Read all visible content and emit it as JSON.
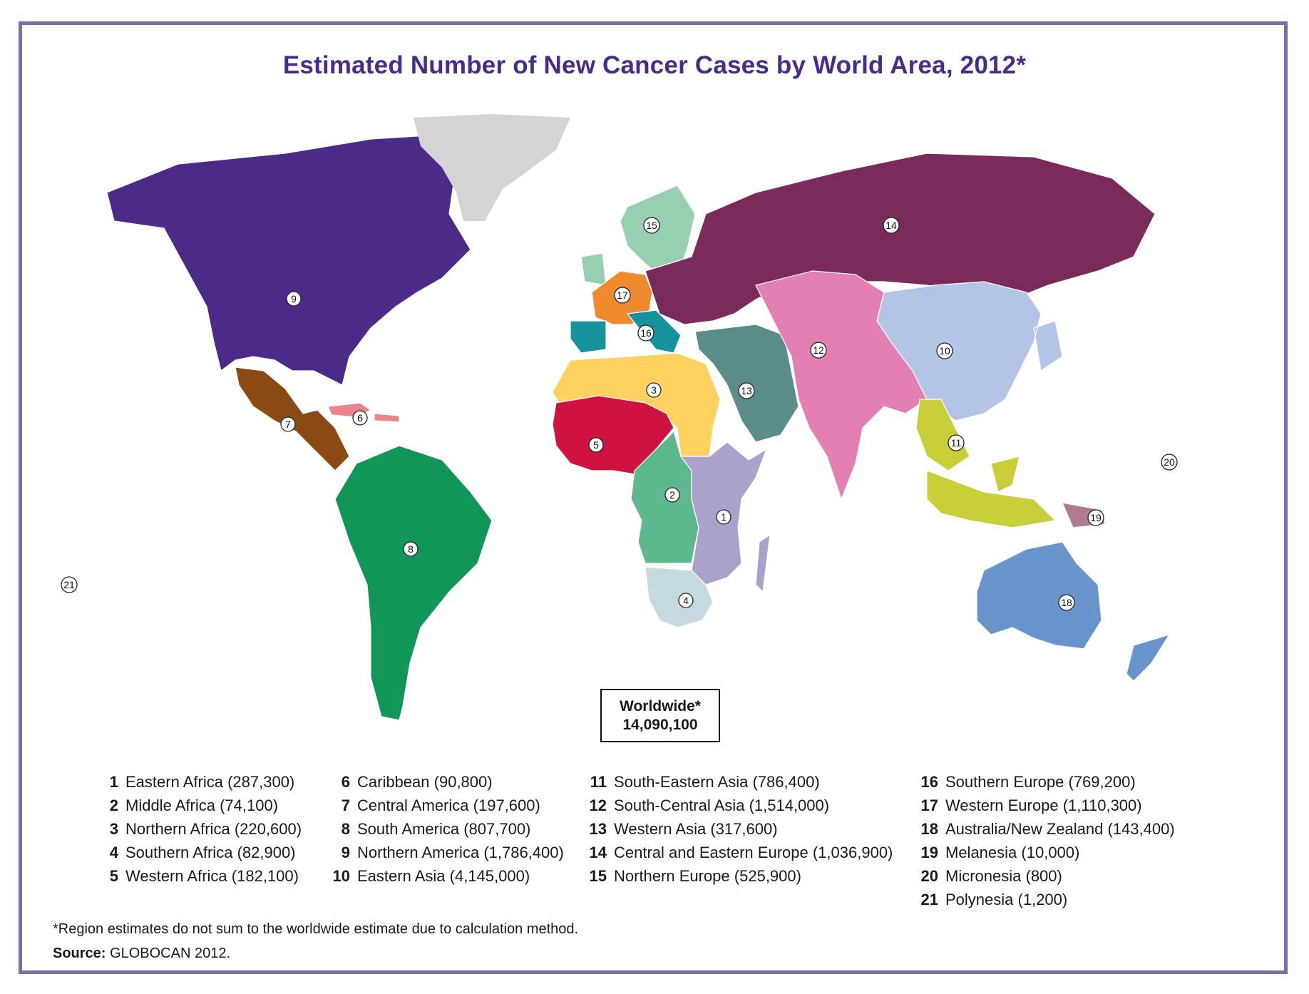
{
  "title": "Estimated Number of New Cancer Cases by World Area, 2012*",
  "worldwide": {
    "label": "Worldwide*",
    "value": "14,090,100"
  },
  "regions": [
    {
      "num": "1",
      "name": "Eastern Africa",
      "cases": "(287,300)",
      "color": "#aaa2cb"
    },
    {
      "num": "2",
      "name": "Middle Africa",
      "cases": "(74,100)",
      "color": "#5db98d"
    },
    {
      "num": "3",
      "name": "Northern Africa",
      "cases": "(220,600)",
      "color": "#ffd15e"
    },
    {
      "num": "4",
      "name": "Southern Africa",
      "cases": "(82,900)",
      "color": "#c4dade"
    },
    {
      "num": "5",
      "name": "Western Africa",
      "cases": "(182,100)",
      "color": "#cf1242"
    },
    {
      "num": "6",
      "name": "Caribbean",
      "cases": "(90,800)",
      "color": "#e9858c"
    },
    {
      "num": "7",
      "name": "Central America",
      "cases": "(197,600)",
      "color": "#8b4a13"
    },
    {
      "num": "8",
      "name": "South America",
      "cases": "(807,700)",
      "color": "#129658"
    },
    {
      "num": "9",
      "name": "Northern America",
      "cases": "(1,786,400)",
      "color": "#4b2b87"
    },
    {
      "num": "10",
      "name": "Eastern Asia",
      "cases": "(4,145,000)",
      "color": "#b4c4e6"
    },
    {
      "num": "11",
      "name": "South-Eastern Asia",
      "cases": "(786,400)",
      "color": "#c8cf38"
    },
    {
      "num": "12",
      "name": "South-Central Asia",
      "cases": "(1,514,000)",
      "color": "#e47fb3"
    },
    {
      "num": "13",
      "name": "Western Asia",
      "cases": "(317,600)",
      "color": "#5b8c8a"
    },
    {
      "num": "14",
      "name": "Central and Eastern Europe",
      "cases": "(1,036,900)",
      "color": "#7a2a5b"
    },
    {
      "num": "15",
      "name": "Northern Europe",
      "cases": "(525,900)",
      "color": "#97d0b0"
    },
    {
      "num": "16",
      "name": "Southern Europe",
      "cases": "(769,200)",
      "color": "#17929e"
    },
    {
      "num": "17",
      "name": "Western Europe",
      "cases": "(1,110,300)",
      "color": "#ef8a2e"
    },
    {
      "num": "18",
      "name": "Australia/New Zealand",
      "cases": "(143,400)",
      "color": "#6894cb"
    },
    {
      "num": "19",
      "name": "Melanesia",
      "cases": "(10,000)",
      "color": "#b07b90"
    },
    {
      "num": "20",
      "name": "Micronesia",
      "cases": "(800)",
      "color": "#ffffff"
    },
    {
      "num": "21",
      "name": "Polynesia",
      "cases": "(1,200)",
      "color": "#ffffff"
    }
  ],
  "greenland_color": "#d4d4d6",
  "footnote": "*Region estimates do not sum to the worldwide estimate due to calculation method.",
  "source": {
    "label": "Source:",
    "text": "GLOBOCAN 2012."
  }
}
